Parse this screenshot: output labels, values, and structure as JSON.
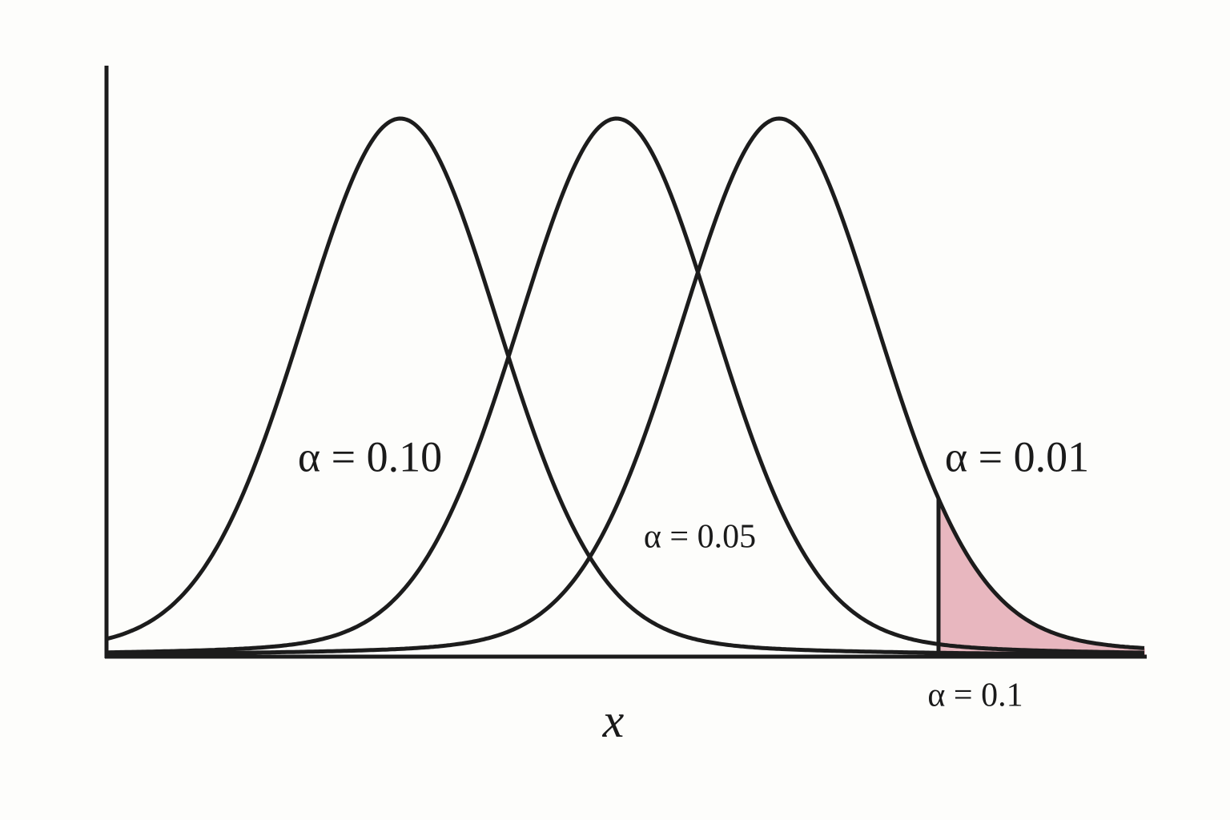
{
  "labels": [
    "α = 0.10",
    "α = 0.05",
    "α = 0.01",
    "α = 0.1"
  ],
  "axis_label": "x"
}
